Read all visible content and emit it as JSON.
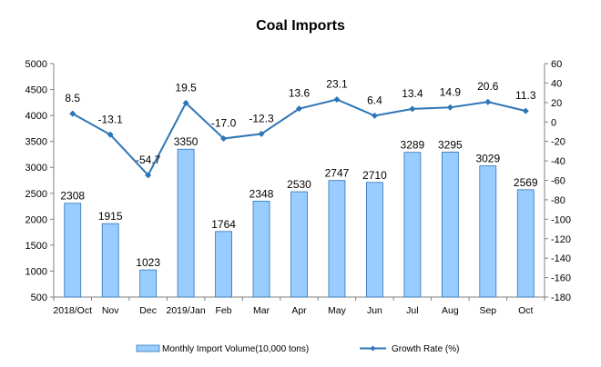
{
  "chart_data": {
    "type": "bar",
    "title": "Coal Imports",
    "categories": [
      "2018/Oct",
      "Nov",
      "Dec",
      "2019/Jan",
      "Feb",
      "Mar",
      "Apr",
      "May",
      "Jun",
      "Jul",
      "Aug",
      "Sep",
      "Oct"
    ],
    "series": [
      {
        "name": "Monthly Import Volume(10,000 tons)",
        "type": "bar",
        "axis": "left",
        "color": "#99ccff",
        "values": [
          2308,
          1915,
          1023,
          3350,
          1764,
          2348,
          2530,
          2747,
          2710,
          3289,
          3295,
          3029,
          2569
        ],
        "labels": [
          "2308",
          "1915",
          "1023",
          "3350",
          "1764",
          "2348",
          "2530",
          "2747",
          "2710",
          "3289",
          "3295",
          "3029",
          "2569"
        ]
      },
      {
        "name": "Growth Rate (%)",
        "type": "line",
        "axis": "right",
        "color": "#2e75b6",
        "values": [
          8.5,
          -13.1,
          -54.7,
          19.5,
          -17.0,
          -12.3,
          13.6,
          23.1,
          6.4,
          13.4,
          14.9,
          20.6,
          11.3
        ],
        "labels": [
          "8.5",
          "-13.1",
          "-54.7",
          "19.5",
          "-17.0",
          "-12.3",
          "13.6",
          "23.1",
          "6.4",
          "13.4",
          "14.9",
          "20.6",
          "11.3"
        ]
      }
    ],
    "y_left": {
      "range": [
        500,
        5000
      ],
      "ticks": [
        500,
        1000,
        1500,
        2000,
        2500,
        3000,
        3500,
        4000,
        4500,
        5000
      ],
      "tick_labels": [
        "500",
        "1000",
        "1500",
        "2000",
        "2500",
        "3000",
        "3500",
        "4000",
        "4500",
        "5000"
      ]
    },
    "y_right": {
      "range": [
        -180,
        60
      ],
      "ticks": [
        -180,
        -160,
        -140,
        -120,
        -100,
        -80,
        -60,
        -40,
        -20,
        0,
        20,
        40,
        60
      ],
      "tick_labels": [
        "-180",
        "-160",
        "-140",
        "-120",
        "-100",
        "-80",
        "-60",
        "-40",
        "-20",
        "0",
        "20",
        "40",
        "60"
      ]
    },
    "grid": false,
    "legend_position": "bottom"
  }
}
